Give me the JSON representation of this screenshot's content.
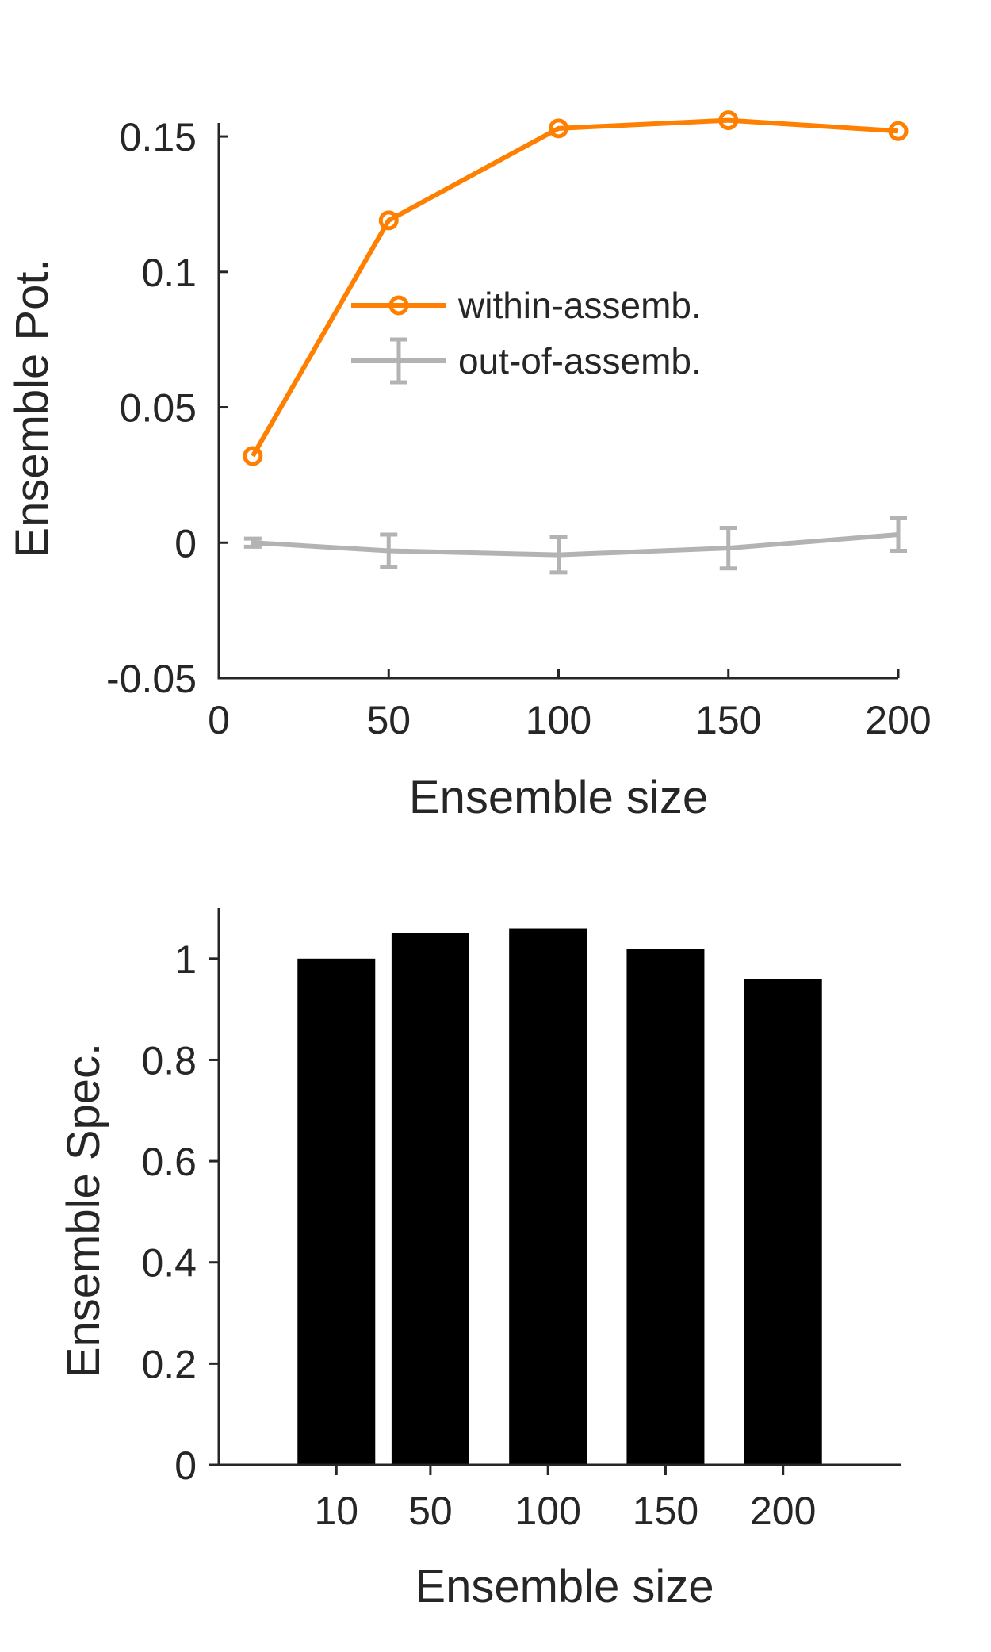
{
  "chart_data": [
    {
      "type": "line",
      "xlabel": "Ensemble size",
      "ylabel": "Ensemble Pot.",
      "xlim": [
        0,
        200
      ],
      "ylim": [
        -0.05,
        0.155
      ],
      "xticks": [
        0,
        50,
        100,
        150,
        200
      ],
      "xtick_labels": [
        "0",
        "50",
        "100",
        "150",
        "200"
      ],
      "yticks": [
        -0.05,
        0,
        0.05,
        0.1,
        0.15
      ],
      "ytick_labels": [
        "-0.05",
        "0",
        "0.05",
        "0.1",
        "0.15"
      ],
      "legend_position": "center-right",
      "series": [
        {
          "name": "within-assemb.",
          "color": "#ff7f00",
          "marker": "circle",
          "x": [
            10,
            50,
            100,
            150,
            200
          ],
          "y": [
            0.032,
            0.119,
            0.153,
            0.156,
            0.152
          ],
          "err": [
            0.001,
            0.001,
            0.001,
            0.001,
            0.001
          ]
        },
        {
          "name": "out-of-assemb.",
          "color": "#b3b3b3",
          "marker": "errorbar",
          "x": [
            10,
            50,
            100,
            150,
            200
          ],
          "y": [
            0.0,
            -0.003,
            -0.0045,
            -0.002,
            0.003
          ],
          "err": [
            0.0015,
            0.006,
            0.0065,
            0.0075,
            0.006
          ]
        }
      ]
    },
    {
      "type": "bar",
      "xlabel": "Ensemble size",
      "ylabel": "Ensemble Spec.",
      "ylim": [
        0,
        1.1
      ],
      "categories": [
        "10",
        "50",
        "100",
        "150",
        "200"
      ],
      "x_positions": [
        10,
        50,
        100,
        150,
        200
      ],
      "xlim": [
        -40,
        250
      ],
      "values": [
        1.0,
        1.05,
        1.06,
        1.02,
        0.96
      ],
      "bar_color": "#000000",
      "yticks": [
        0,
        0.2,
        0.4,
        0.6,
        0.8,
        1
      ],
      "ytick_labels": [
        "0",
        "0.2",
        "0.4",
        "0.6",
        "0.8",
        "1"
      ]
    }
  ]
}
